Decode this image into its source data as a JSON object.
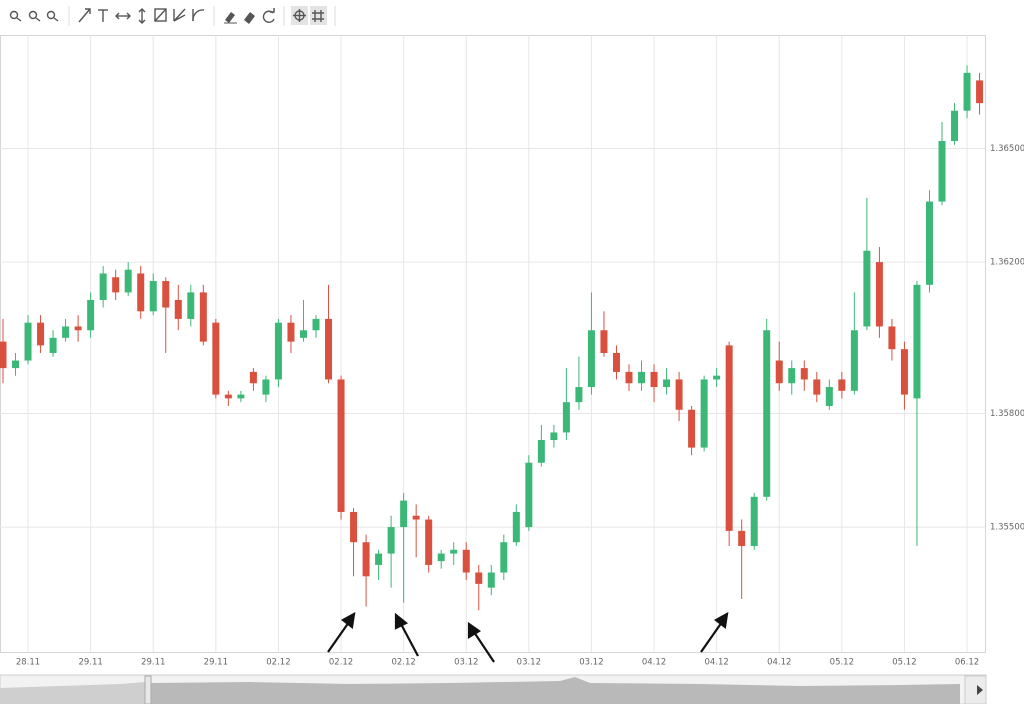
{
  "chart_data": {
    "type": "candlestick",
    "categories": [
      null,
      null,
      "28.11",
      null,
      null,
      null,
      null,
      "29.11",
      null,
      null,
      null,
      null,
      "29.11",
      null,
      null,
      null,
      null,
      "29.11",
      null,
      null,
      null,
      null,
      "02.12",
      null,
      null,
      null,
      null,
      "02.12",
      null,
      null,
      null,
      null,
      "02.12",
      null,
      null,
      null,
      null,
      "03.12",
      null,
      null,
      null,
      null,
      "03.12",
      null,
      null,
      null,
      null,
      "03.12",
      null,
      null,
      null,
      null,
      "04.12",
      null,
      null,
      null,
      null,
      "04.12",
      null,
      null,
      null,
      null,
      "04.12",
      null,
      null,
      null,
      null,
      "05.12",
      null,
      null,
      null,
      null,
      "05.12",
      null,
      null,
      null,
      null,
      "06.12",
      null
    ],
    "open": [
      1.3599,
      1.3592,
      1.3594,
      1.3604,
      1.3596,
      1.36,
      1.3603,
      1.3602,
      1.361,
      1.3616,
      1.3612,
      1.3617,
      1.3607,
      1.3615,
      1.361,
      1.3605,
      1.3612,
      1.3604,
      1.3585,
      1.3584,
      1.3591,
      1.3585,
      1.3589,
      1.3604,
      1.36,
      1.3602,
      1.3605,
      1.3589,
      1.3554,
      1.3546,
      1.354,
      1.3543,
      1.355,
      1.3553,
      1.3552,
      1.3541,
      1.3543,
      1.3544,
      1.3538,
      1.3534,
      1.3538,
      1.3546,
      1.355,
      1.3567,
      1.3573,
      1.3575,
      1.3583,
      1.3587,
      1.3602,
      1.3596,
      1.3591,
      1.3588,
      1.3591,
      1.3587,
      1.3589,
      1.3581,
      1.3571,
      1.3589,
      1.3598,
      1.3549,
      1.3545,
      1.3558,
      1.3594,
      1.3588,
      1.3592,
      1.3589,
      1.3582,
      1.3589,
      1.3586,
      1.3603,
      1.362,
      1.3603,
      1.3597,
      1.3584,
      1.3614,
      1.3636,
      1.3652,
      1.366,
      1.3668
    ],
    "high": [
      1.3605,
      1.3596,
      1.3606,
      1.3606,
      1.3602,
      1.3605,
      1.3606,
      1.3612,
      1.3619,
      1.3618,
      1.362,
      1.3619,
      1.3617,
      1.3616,
      1.3614,
      1.3614,
      1.3614,
      1.3605,
      1.3586,
      1.3586,
      1.3592,
      1.359,
      1.3605,
      1.3606,
      1.361,
      1.3606,
      1.3614,
      1.359,
      1.3555,
      1.3548,
      1.3544,
      1.3553,
      1.3559,
      1.3556,
      1.3553,
      1.3544,
      1.3546,
      1.3546,
      1.354,
      1.354,
      1.3548,
      1.3556,
      1.3569,
      1.3577,
      1.3577,
      1.3592,
      1.3595,
      1.3612,
      1.3607,
      1.3598,
      1.3593,
      1.3594,
      1.3593,
      1.3592,
      1.3591,
      1.3582,
      1.359,
      1.3592,
      1.3599,
      1.3552,
      1.3559,
      1.3605,
      1.3599,
      1.3594,
      1.3594,
      1.3591,
      1.3589,
      1.3591,
      1.3612,
      1.3637,
      1.3624,
      1.3605,
      1.3599,
      1.3615,
      1.3639,
      1.3657,
      1.3662,
      1.3672,
      1.367
    ],
    "low": [
      1.3588,
      1.359,
      1.3593,
      1.3596,
      1.3595,
      1.3599,
      1.3599,
      1.36,
      1.3608,
      1.361,
      1.3611,
      1.3605,
      1.3606,
      1.3596,
      1.3602,
      1.3603,
      1.3598,
      1.3584,
      1.3582,
      1.3583,
      1.3586,
      1.3583,
      1.3587,
      1.3596,
      1.3599,
      1.36,
      1.3588,
      1.3552,
      1.3537,
      1.3529,
      1.3536,
      1.3534,
      1.353,
      1.3542,
      1.3538,
      1.3539,
      1.354,
      1.3536,
      1.3528,
      1.3532,
      1.3536,
      1.3545,
      1.3549,
      1.3566,
      1.3571,
      1.3573,
      1.3581,
      1.3585,
      1.3595,
      1.3589,
      1.3586,
      1.3586,
      1.3583,
      1.3585,
      1.3578,
      1.3569,
      1.357,
      1.3587,
      1.3545,
      1.3531,
      1.3544,
      1.3557,
      1.3586,
      1.3585,
      1.3586,
      1.3583,
      1.3581,
      1.3584,
      1.3585,
      1.3602,
      1.36,
      1.3594,
      1.3581,
      1.3545,
      1.3612,
      1.3635,
      1.3651,
      1.3658,
      1.3659
    ],
    "close": [
      1.3592,
      1.3594,
      1.3604,
      1.3598,
      1.36,
      1.3603,
      1.3602,
      1.361,
      1.3617,
      1.3612,
      1.3618,
      1.3607,
      1.3615,
      1.3608,
      1.3605,
      1.3612,
      1.3599,
      1.3585,
      1.3584,
      1.3585,
      1.3588,
      1.3589,
      1.3604,
      1.3599,
      1.3602,
      1.3605,
      1.3589,
      1.3554,
      1.3546,
      1.3537,
      1.3543,
      1.355,
      1.3557,
      1.3552,
      1.354,
      1.3543,
      1.3544,
      1.3538,
      1.3535,
      1.3538,
      1.3546,
      1.3554,
      1.3567,
      1.3573,
      1.3575,
      1.3583,
      1.3587,
      1.3602,
      1.3596,
      1.3591,
      1.3588,
      1.3591,
      1.3587,
      1.3589,
      1.3581,
      1.3571,
      1.3589,
      1.359,
      1.3549,
      1.3545,
      1.3558,
      1.3602,
      1.3588,
      1.3592,
      1.3589,
      1.3585,
      1.3587,
      1.3586,
      1.3602,
      1.3623,
      1.3603,
      1.3597,
      1.3585,
      1.3614,
      1.3636,
      1.3652,
      1.366,
      1.367,
      1.3662
    ],
    "up_color": "#3bb877",
    "down_color": "#d9503f",
    "ylim": [
      1.3517,
      1.368
    ],
    "yticks": [
      {
        "value": 1.365,
        "label": "1.36500"
      },
      {
        "value": 1.362,
        "label": "1.36200"
      },
      {
        "value": 1.358,
        "label": "1.35800"
      },
      {
        "value": 1.355,
        "label": "1.35500"
      }
    ],
    "grid": true
  }
}
